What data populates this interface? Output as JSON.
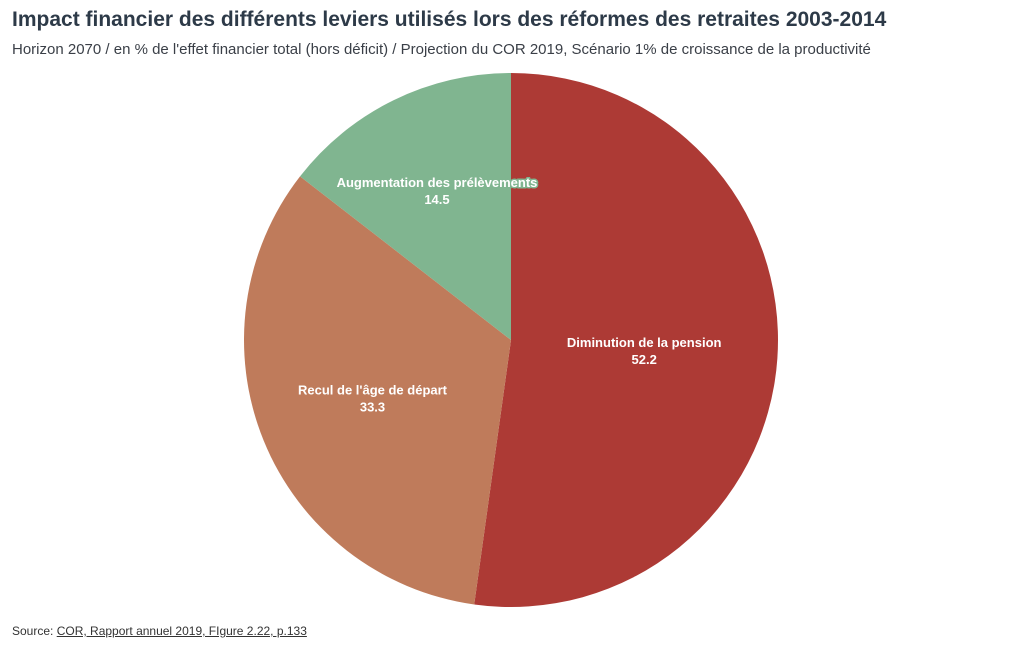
{
  "chart_data": {
    "type": "pie",
    "title": "Impact financier des différents leviers utilisés lors des réformes des retraites 2003-2014",
    "subtitle": "Horizon 2070 / en % de l'effet financier total (hors déficit) / Projection du COR 2019, Scénario 1% de croissance de la productivité",
    "slices": [
      {
        "label": "Diminution de la pension",
        "value": 52.2,
        "value_label": "52.2",
        "color": "#ad3a35",
        "text_color": "#ffffff"
      },
      {
        "label": "Recul de l'âge de départ",
        "value": 33.3,
        "value_label": "33.3",
        "color": "#bf7b5b",
        "text_color": "#ffffff"
      },
      {
        "label": "Augmentation des prélèvements",
        "value": 14.5,
        "value_label": "14.5",
        "color": "#80b590",
        "text_color": "#ffffff"
      }
    ]
  },
  "source": {
    "prefix": "Source: ",
    "link_text": "COR, Rapport annuel 2019, FIgure 2.22, p.133"
  }
}
